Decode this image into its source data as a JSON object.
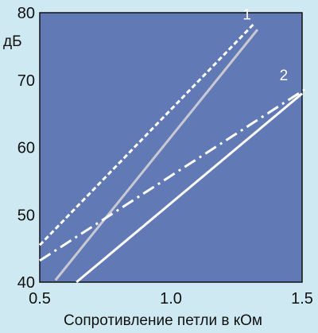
{
  "chart_data": {
    "type": "line",
    "xlabel": "Сопротивление петли в кОм",
    "ylabel": "дБ",
    "xlim": [
      0.5,
      1.5
    ],
    "ylim": [
      40,
      80
    ],
    "x_ticks": [
      "0.5",
      "1.0",
      "1.5"
    ],
    "y_ticks": [
      "40",
      "50",
      "60",
      "70",
      "80"
    ],
    "grid": false,
    "legend": "none",
    "colors": {
      "plot_bg": "#6179b4",
      "page_bg": "#cfe9f2",
      "frame": "#111111",
      "line_white": "#ffffff",
      "line_gray": "#c9c9d4"
    },
    "series": [
      {
        "style": "dotted",
        "color": "#ffffff",
        "x": [
          0.5,
          1.32
        ],
        "y": [
          45.5,
          78.5
        ]
      },
      {
        "style": "solid",
        "color": "#c9c9d4",
        "x": [
          0.56,
          1.33
        ],
        "y": [
          40.3,
          77.5
        ]
      },
      {
        "style": "dashdot",
        "color": "#ffffff",
        "x": [
          0.5,
          1.51
        ],
        "y": [
          43.2,
          68.6
        ]
      },
      {
        "style": "solid",
        "color": "#ffffff",
        "x": [
          0.64,
          1.5
        ],
        "y": [
          40.0,
          68.0
        ]
      }
    ],
    "annotations": [
      {
        "text": "1",
        "x": 1.29,
        "y": 79.0
      },
      {
        "text": "2",
        "x": 1.43,
        "y": 70.0
      }
    ]
  }
}
